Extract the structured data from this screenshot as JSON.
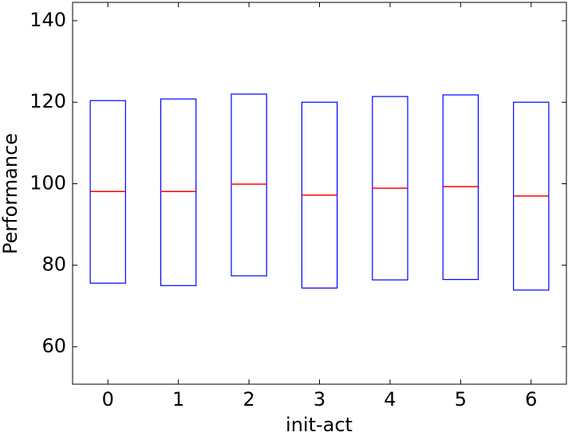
{
  "chart_data": {
    "type": "box",
    "xlabel": "init-act",
    "ylabel": "Performance",
    "categories": [
      "0",
      "1",
      "2",
      "3",
      "4",
      "5",
      "6"
    ],
    "q1": [
      75.6,
      75.0,
      77.4,
      74.4,
      76.4,
      76.5,
      73.9
    ],
    "median": [
      98.1,
      98.1,
      99.9,
      97.2,
      98.9,
      99.3,
      97.0
    ],
    "q3": [
      120.4,
      120.8,
      122.0,
      120.0,
      121.4,
      121.8,
      120.0
    ],
    "box_color": "#0000ff",
    "median_color": "#ff0000",
    "ylim": [
      50.8,
      144.5
    ],
    "yticks": [
      60,
      80,
      100,
      120,
      140
    ]
  }
}
